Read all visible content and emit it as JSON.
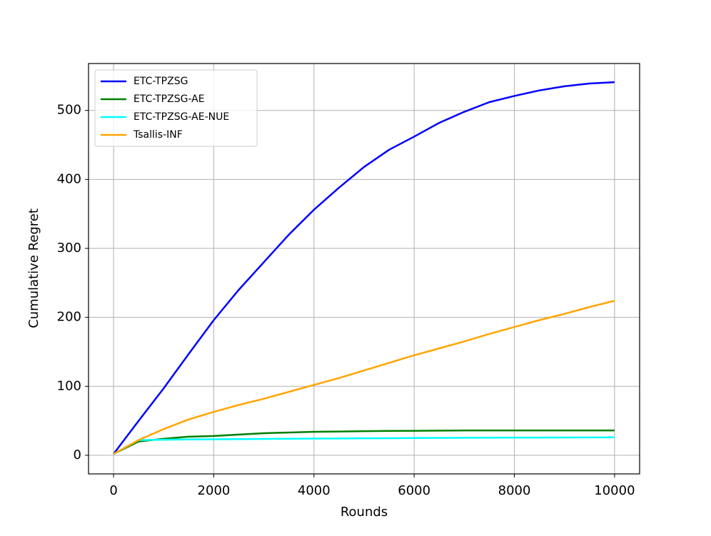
{
  "chart_data": {
    "type": "line",
    "x_label": "Rounds",
    "y_label": "Cumulative Regret",
    "x": [
      0,
      500,
      1000,
      1500,
      2000,
      2500,
      3000,
      3500,
      4000,
      4500,
      5000,
      5500,
      6000,
      6500,
      7000,
      7500,
      8000,
      8500,
      9000,
      9500,
      10000
    ],
    "series": [
      {
        "name": "ETC-TPZSG",
        "color": "#0000ff",
        "values": [
          2,
          50,
          97,
          147,
          196,
          240,
          280,
          320,
          356,
          388,
          418,
          443,
          462,
          482,
          498,
          512,
          521,
          529,
          535,
          539,
          541
        ]
      },
      {
        "name": "ETC-TPZSG-AE",
        "color": "#008000",
        "values": [
          2,
          20,
          24,
          27,
          28,
          30,
          32,
          33,
          34,
          34.5,
          35,
          35.3,
          35.5,
          35.7,
          36,
          36,
          36,
          36,
          36,
          36,
          36
        ]
      },
      {
        "name": "ETC-TPZSG-AE-NUE",
        "color": "#00ffff",
        "values": [
          2,
          22,
          22.5,
          23,
          23.2,
          23.5,
          23.7,
          24,
          24.2,
          24.4,
          24.6,
          24.8,
          25,
          25.2,
          25.4,
          25.5,
          25.6,
          25.7,
          25.8,
          25.9,
          26
        ]
      },
      {
        "name": "Tsallis-INF",
        "color": "#ffa500",
        "values": [
          2,
          22,
          38,
          52,
          63,
          73,
          82,
          92,
          102,
          112,
          123,
          134,
          145,
          155,
          165,
          176,
          186,
          196,
          205,
          215,
          224
        ]
      }
    ],
    "xlim": [
      -500,
      10500
    ],
    "ylim": [
      -27,
      568
    ],
    "xticks": [
      0,
      2000,
      4000,
      6000,
      8000,
      10000
    ],
    "yticks": [
      0,
      100,
      200,
      300,
      400,
      500
    ],
    "grid": true,
    "legend": "upper-left"
  }
}
